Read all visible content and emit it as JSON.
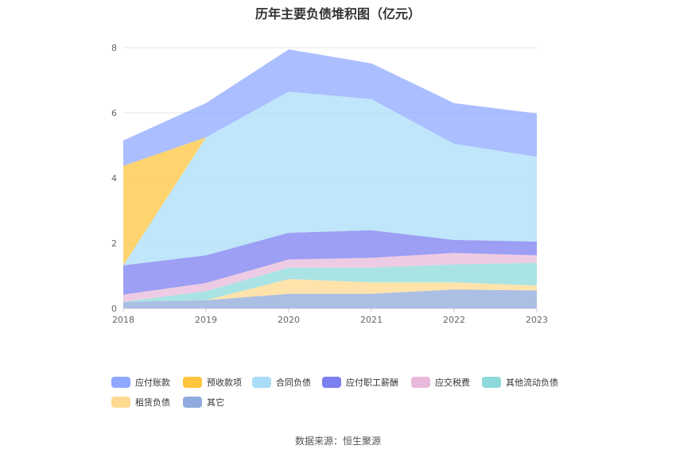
{
  "title": "历年主要负债堆积图（亿元）",
  "source": "数据来源：恒生聚源",
  "chart_data": {
    "type": "area",
    "stacked": true,
    "categories": [
      "2018",
      "2019",
      "2020",
      "2021",
      "2022",
      "2023"
    ],
    "ylim": [
      0,
      8
    ],
    "yticks": [
      0,
      2,
      4,
      6,
      8
    ],
    "grid": true,
    "legend_position": "bottom",
    "series": [
      {
        "name": "其它",
        "color": "#8FAADC",
        "values": [
          0.2,
          0.25,
          0.45,
          0.45,
          0.58,
          0.55
        ]
      },
      {
        "name": "租赁负债",
        "color": "#FFD98F",
        "values": [
          0.0,
          0.0,
          0.45,
          0.35,
          0.22,
          0.15
        ]
      },
      {
        "name": "其他流动负债",
        "color": "#8ED9D9",
        "values": [
          0.0,
          0.28,
          0.35,
          0.45,
          0.55,
          0.7
        ]
      },
      {
        "name": "应交税费",
        "color": "#E8B9DB",
        "values": [
          0.22,
          0.25,
          0.25,
          0.3,
          0.35,
          0.23
        ]
      },
      {
        "name": "应付职工薪酬",
        "color": "#7B7FF0",
        "values": [
          0.9,
          0.85,
          0.82,
          0.85,
          0.4,
          0.42
        ]
      },
      {
        "name": "合同负债",
        "color": "#A9DDF8",
        "values": [
          0.0,
          3.62,
          4.33,
          4.02,
          2.95,
          2.6
        ]
      },
      {
        "name": "预收款项",
        "color": "#FFC53D",
        "values": [
          3.05,
          0.0,
          0.0,
          0.0,
          0.0,
          0.0
        ]
      },
      {
        "name": "应付账款",
        "color": "#8FA8FF",
        "values": [
          0.78,
          1.05,
          1.3,
          1.1,
          1.25,
          1.33
        ]
      }
    ],
    "legend": [
      "应付账款",
      "预收款项",
      "合同负债",
      "应付职工薪酬",
      "应交税费",
      "其他流动负债",
      "租赁负债",
      "其它"
    ]
  }
}
